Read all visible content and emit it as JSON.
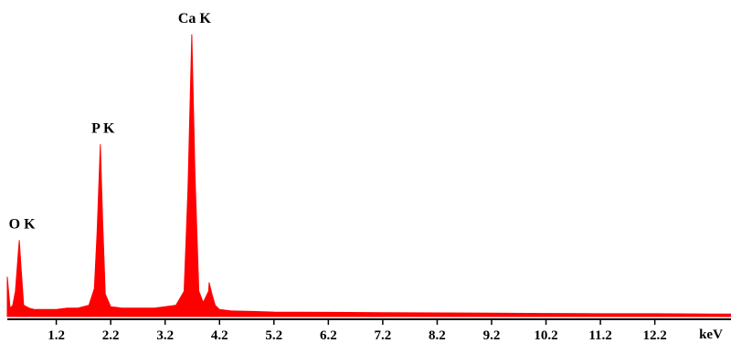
{
  "chart_data": {
    "type": "area",
    "title": "",
    "xlabel": "keV",
    "ylabel": "",
    "xlim": [
      0.3,
      13.6
    ],
    "ylim": [
      0,
      100
    ],
    "grid": false,
    "legend": "none",
    "colors": {
      "spectrum": "#ff0000",
      "axis": "#000000"
    },
    "x_ticks": [
      "1.2",
      "2.2",
      "3.2",
      "4.2",
      "5.2",
      "6.2",
      "7.2",
      "8.2",
      "9.2",
      "10.2",
      "11.2",
      "12.2"
    ],
    "x_tick_values": [
      1.2,
      2.2,
      3.2,
      4.2,
      5.2,
      6.2,
      7.2,
      8.2,
      9.2,
      10.2,
      11.2,
      12.2
    ],
    "unit_label": "keV",
    "peaks": [
      {
        "label": "O K",
        "x": 0.52,
        "height": 27
      },
      {
        "label": "P K",
        "x": 2.01,
        "height": 61
      },
      {
        "label": "Ca K",
        "x": 3.69,
        "height": 100
      }
    ],
    "series": [
      {
        "x": [
          0.3,
          0.35,
          0.4,
          0.45,
          0.5,
          0.52,
          0.55,
          0.6,
          0.7,
          0.8,
          1.0,
          1.2,
          1.4,
          1.6,
          1.8,
          1.9,
          1.95,
          2.01,
          2.05,
          2.1,
          2.2,
          2.4,
          2.6,
          2.8,
          3.0,
          3.2,
          3.4,
          3.55,
          3.62,
          3.69,
          3.75,
          3.82,
          3.9,
          4.0,
          4.01,
          4.06,
          4.12,
          4.2,
          4.4,
          4.8,
          5.2,
          6.2,
          7.2,
          8.2,
          9.2,
          10.2,
          11.2,
          12.2,
          13.2,
          13.6
        ],
        "y": [
          14,
          3,
          4,
          9,
          22,
          27,
          18,
          4,
          3,
          2.5,
          2.5,
          2.5,
          3,
          3,
          4,
          10,
          30,
          61,
          35,
          8,
          3.5,
          3,
          3,
          3,
          3,
          3.5,
          4,
          9,
          45,
          100,
          50,
          9,
          5,
          9,
          12,
          8,
          4,
          2.5,
          2,
          1.8,
          1.6,
          1.5,
          1.4,
          1.3,
          1.2,
          1.1,
          1,
          1,
          0.9,
          0.9
        ]
      }
    ]
  }
}
